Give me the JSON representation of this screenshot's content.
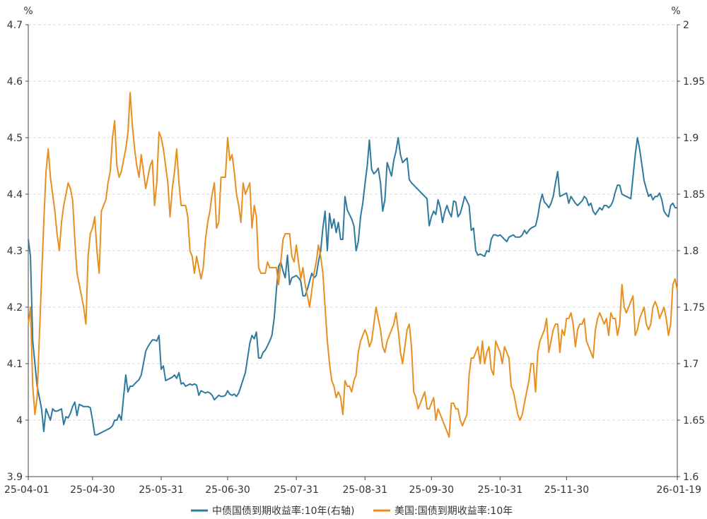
{
  "chart_data": {
    "type": "line",
    "title": "",
    "left_axis": {
      "unit": "%",
      "ticks": [
        "3.9",
        "4",
        "4.1",
        "4.2",
        "4.3",
        "4.4",
        "4.5",
        "4.6",
        "4.7"
      ],
      "ylim": [
        3.9,
        4.7
      ]
    },
    "right_axis": {
      "unit": "%",
      "ticks": [
        "1.6",
        "1.65",
        "1.7",
        "1.75",
        "1.8",
        "1.85",
        "1.9",
        "1.95",
        "2"
      ],
      "ylim": [
        1.6,
        2.0
      ]
    },
    "x_ticks": [
      "25-04-01",
      "25-04-30",
      "25-05-31",
      "25-06-30",
      "25-07-31",
      "25-08-31",
      "25-09-30",
      "25-10-31",
      "25-11-30",
      "26-01-19"
    ],
    "grid": true,
    "legend_position": "bottom",
    "series": [
      {
        "name": "中债国债到期收益率:10年(右轴)",
        "axis": "right",
        "color": "#2E7A9E",
        "x": [
          0,
          1,
          2,
          3,
          4,
          5,
          6,
          7,
          8,
          9,
          10,
          11,
          12,
          13,
          14,
          15,
          16,
          17,
          18,
          19,
          20,
          21,
          22,
          23,
          24,
          25,
          26,
          27,
          28,
          29,
          30,
          31,
          32,
          33,
          34,
          35,
          36,
          37,
          38,
          39,
          40,
          41,
          42,
          43,
          44,
          45,
          46,
          47,
          48,
          49,
          50,
          51,
          52,
          53,
          54,
          55,
          56,
          57,
          58,
          59,
          60,
          61,
          62,
          63,
          64,
          65,
          66,
          67,
          68,
          69,
          70,
          71,
          72,
          73,
          74,
          75,
          76,
          77,
          78,
          79,
          80,
          81,
          82,
          83,
          84,
          85,
          86,
          87,
          88,
          89,
          90,
          91,
          92,
          93,
          94,
          95,
          96,
          97,
          98,
          99,
          100,
          101,
          102,
          103,
          104,
          105,
          106,
          107,
          108,
          109,
          110,
          111,
          112,
          113,
          114,
          115,
          116,
          117,
          118,
          119,
          120,
          121,
          122,
          123,
          124,
          125,
          126,
          127,
          128,
          129,
          130,
          131,
          132,
          133,
          134,
          135,
          136,
          137,
          138,
          139,
          140,
          141,
          142,
          143,
          144,
          145,
          146,
          147,
          148,
          149,
          150,
          151,
          152,
          153,
          154,
          155,
          156,
          157,
          158,
          159,
          160,
          161,
          162,
          163,
          164,
          165,
          166,
          167,
          168,
          169,
          170,
          171,
          172,
          173,
          174,
          175,
          176,
          177,
          178,
          179,
          180,
          181,
          182,
          183,
          184,
          185,
          186,
          187,
          188,
          189,
          190,
          191,
          192,
          193,
          194,
          195,
          196,
          197,
          198,
          199,
          200,
          201,
          202,
          203,
          204,
          205,
          206,
          207,
          208,
          209,
          210,
          211,
          212,
          213,
          214,
          215,
          216,
          217,
          218,
          219,
          220,
          221,
          222,
          223,
          224,
          225,
          226,
          227,
          228,
          229,
          230,
          231,
          232,
          233,
          234,
          235,
          236,
          237,
          238,
          239,
          240,
          241,
          242,
          243,
          244,
          245,
          246,
          247,
          248,
          249,
          250,
          251,
          252,
          253,
          254,
          255,
          256,
          257,
          258,
          259,
          260,
          261,
          262,
          263,
          264,
          265,
          266,
          267,
          268,
          269,
          270,
          271,
          272,
          273,
          274,
          275,
          276,
          277,
          278,
          279,
          280,
          281,
          282,
          283,
          284,
          285,
          286,
          287,
          288,
          289,
          290,
          291,
          292,
          293
        ],
        "values": [
          1.81,
          1.795,
          1.72,
          1.7,
          1.68,
          1.67,
          1.66,
          1.64,
          1.66,
          1.655,
          1.65,
          1.66,
          1.658,
          1.658,
          1.659,
          1.66,
          1.646,
          1.653,
          1.652,
          1.656,
          1.662,
          1.666,
          1.654,
          1.664,
          1.663,
          1.662,
          1.662,
          1.662,
          1.661,
          1.65,
          1.637,
          1.637,
          1.638,
          1.639,
          1.64,
          1.641,
          1.642,
          1.643,
          1.645,
          1.65,
          1.65,
          1.655,
          1.65,
          1.67,
          1.69,
          1.675,
          1.68,
          1.68,
          1.682,
          1.684,
          1.686,
          1.69,
          1.7,
          1.711,
          1.715,
          1.718,
          1.721,
          1.721,
          1.72,
          1.725,
          1.695,
          1.698,
          1.685,
          1.686,
          1.687,
          1.688,
          1.69,
          1.687,
          1.692,
          1.682,
          1.683,
          1.68,
          1.681,
          1.682,
          1.681,
          1.682,
          1.681,
          1.672,
          1.676,
          1.675,
          1.674,
          1.675,
          1.674,
          1.672,
          1.668,
          1.67,
          1.672,
          1.671,
          1.671,
          1.672,
          1.676,
          1.673,
          1.672,
          1.673,
          1.671,
          1.674,
          1.68,
          1.686,
          1.692,
          1.705,
          1.718,
          1.725,
          1.722,
          1.728,
          1.705,
          1.705,
          1.71,
          1.712,
          1.716,
          1.72,
          1.725,
          1.74,
          1.765,
          1.786,
          1.79,
          1.782,
          1.776,
          1.796,
          1.77,
          1.776,
          1.777,
          1.778,
          1.776,
          1.773,
          1.76,
          1.76,
          1.766,
          1.773,
          1.78,
          1.776,
          1.778,
          1.79,
          1.8,
          1.82,
          1.835,
          1.8,
          1.833,
          1.82,
          1.828,
          1.816,
          1.825,
          1.81,
          1.81,
          1.848,
          1.836,
          1.832,
          1.828,
          1.822,
          1.8,
          1.808,
          1.83,
          1.842,
          1.859,
          1.875,
          1.898,
          1.872,
          1.868,
          1.87,
          1.873,
          1.86,
          1.835,
          1.845,
          1.878,
          1.872,
          1.866,
          1.88,
          1.888,
          1.9,
          1.885,
          1.878,
          1.88,
          1.882,
          1.863,
          1.86,
          1.858,
          1.856,
          1.854,
          1.852,
          1.85,
          1.848,
          1.846,
          1.822,
          1.83,
          1.835,
          1.832,
          1.845,
          1.838,
          1.825,
          1.834,
          1.84,
          1.834,
          1.83,
          1.844,
          1.843,
          1.83,
          1.833,
          1.84,
          1.848,
          1.844,
          1.84,
          1.818,
          1.82,
          1.8,
          1.796,
          1.797,
          1.796,
          1.795,
          1.8,
          1.799,
          1.81,
          1.814,
          1.814,
          1.813,
          1.814,
          1.812,
          1.81,
          1.808,
          1.812,
          1.813,
          1.814,
          1.812,
          1.812,
          1.812,
          1.814,
          1.818,
          1.815,
          1.818,
          1.82,
          1.821,
          1.822,
          1.83,
          1.842,
          1.85,
          1.843,
          1.841,
          1.838,
          1.842,
          1.848,
          1.86,
          1.87,
          1.848,
          1.849,
          1.85,
          1.851,
          1.842,
          1.848,
          1.845,
          1.842,
          1.84,
          1.842,
          1.844,
          1.848,
          1.846,
          1.84,
          1.842,
          1.835,
          1.832,
          1.835,
          1.838,
          1.836,
          1.84,
          1.84,
          1.838,
          1.84,
          1.844,
          1.852,
          1.858,
          1.858,
          1.85,
          1.849,
          1.848,
          1.847,
          1.846,
          1.865,
          1.885,
          1.9,
          1.89,
          1.876,
          1.862,
          1.855,
          1.848,
          1.85,
          1.845,
          1.848,
          1.848,
          1.851,
          1.845,
          1.835,
          1.832,
          1.83,
          1.84,
          1.842,
          1.838,
          1.838
        ]
      },
      {
        "name": "美国:国债到期收益率:10年",
        "axis": "left",
        "color": "#E8901F",
        "x": [
          0,
          1,
          2,
          3,
          4,
          5,
          6,
          7,
          8,
          9,
          10,
          11,
          12,
          13,
          14,
          15,
          16,
          17,
          18,
          19,
          20,
          21,
          22,
          23,
          24,
          25,
          26,
          27,
          28,
          29,
          30,
          31,
          32,
          33,
          34,
          35,
          36,
          37,
          38,
          39,
          40,
          41,
          42,
          43,
          44,
          45,
          46,
          47,
          48,
          49,
          50,
          51,
          52,
          53,
          54,
          55,
          56,
          57,
          58,
          59,
          60,
          61,
          62,
          63,
          64,
          65,
          66,
          67,
          68,
          69,
          70,
          71,
          72,
          73,
          74,
          75,
          76,
          77,
          78,
          79,
          80,
          81,
          82,
          83,
          84,
          85,
          86,
          87,
          88,
          89,
          90,
          91,
          92,
          93,
          94,
          95,
          96,
          97,
          98,
          99,
          100,
          101,
          102,
          103,
          104,
          105,
          106,
          107,
          108,
          109,
          110,
          111,
          112,
          113,
          114,
          115,
          116,
          117,
          118,
          119,
          120,
          121,
          122,
          123,
          124,
          125,
          126,
          127,
          128,
          129,
          130,
          131,
          132,
          133,
          134,
          135,
          136,
          137,
          138,
          139,
          140,
          141,
          142,
          143,
          144,
          145,
          146,
          147,
          148,
          149,
          150,
          151,
          152,
          153,
          154,
          155,
          156,
          157,
          158,
          159,
          160,
          161,
          162,
          163,
          164,
          165,
          166,
          167,
          168,
          169,
          170,
          171,
          172,
          173,
          174,
          175,
          176,
          177,
          178,
          179,
          180,
          181,
          182,
          183,
          184,
          185,
          186,
          187,
          188,
          189,
          190,
          191,
          192,
          193,
          194,
          195,
          196,
          197,
          198,
          199,
          200,
          201,
          202,
          203,
          204,
          205,
          206,
          207,
          208,
          209,
          210,
          211,
          212,
          213,
          214,
          215,
          216,
          217,
          218,
          219,
          220,
          221,
          222,
          223,
          224,
          225,
          226,
          227,
          228,
          229,
          230,
          231,
          232,
          233,
          234,
          235,
          236,
          237,
          238,
          239,
          240,
          241,
          242,
          243,
          244,
          245,
          246,
          247,
          248,
          249,
          250,
          251,
          252,
          253,
          254,
          255,
          256,
          257,
          258,
          259,
          260,
          261,
          262,
          263,
          264,
          265,
          266,
          267,
          268,
          269,
          270,
          271,
          272,
          273,
          274,
          275,
          276,
          277,
          278,
          279,
          280,
          281,
          282,
          283,
          284,
          285,
          286,
          287,
          288,
          289,
          290,
          291,
          292,
          293
        ],
        "values": [
          4.17,
          4.2,
          4.06,
          4.01,
          4.04,
          4.15,
          4.25,
          4.35,
          4.44,
          4.48,
          4.43,
          4.4,
          4.37,
          4.33,
          4.3,
          4.35,
          4.38,
          4.4,
          4.42,
          4.41,
          4.39,
          4.32,
          4.26,
          4.24,
          4.22,
          4.2,
          4.17,
          4.29,
          4.33,
          4.34,
          4.36,
          4.3,
          4.26,
          4.37,
          4.38,
          4.39,
          4.42,
          4.44,
          4.5,
          4.53,
          4.45,
          4.43,
          4.44,
          4.46,
          4.48,
          4.51,
          4.58,
          4.52,
          4.48,
          4.45,
          4.43,
          4.47,
          4.44,
          4.41,
          4.43,
          4.45,
          4.46,
          4.38,
          4.42,
          4.51,
          4.5,
          4.48,
          4.45,
          4.42,
          4.36,
          4.41,
          4.44,
          4.48,
          4.42,
          4.38,
          4.38,
          4.38,
          4.36,
          4.3,
          4.29,
          4.26,
          4.29,
          4.27,
          4.25,
          4.27,
          4.32,
          4.35,
          4.37,
          4.4,
          4.42,
          4.34,
          4.35,
          4.43,
          4.43,
          4.43,
          4.5,
          4.46,
          4.47,
          4.44,
          4.4,
          4.38,
          4.35,
          4.42,
          4.4,
          4.41,
          4.42,
          4.34,
          4.38,
          4.36,
          4.27,
          4.26,
          4.26,
          4.26,
          4.28,
          4.27,
          4.27,
          4.27,
          4.27,
          4.24,
          4.28,
          4.32,
          4.33,
          4.33,
          4.33,
          4.29,
          4.28,
          4.31,
          4.28,
          4.25,
          4.27,
          4.24,
          4.22,
          4.2,
          4.23,
          4.26,
          4.28,
          4.31,
          4.29,
          4.26,
          4.2,
          4.14,
          4.1,
          4.07,
          4.06,
          4.04,
          4.05,
          4.04,
          4.01,
          4.07,
          4.06,
          4.06,
          4.05,
          4.07,
          4.08,
          4.12,
          4.14,
          4.15,
          4.16,
          4.15,
          4.13,
          4.14,
          4.17,
          4.2,
          4.18,
          4.16,
          4.13,
          4.12,
          4.14,
          4.15,
          4.16,
          4.17,
          4.19,
          4.16,
          4.12,
          4.1,
          4.13,
          4.16,
          4.17,
          4.13,
          4.05,
          4.04,
          4.02,
          4.03,
          4.04,
          4.05,
          4.02,
          4.02,
          4.03,
          4.04,
          4.0,
          4.02,
          4.01,
          4.0,
          3.99,
          3.98,
          3.97,
          4.03,
          4.03,
          4.02,
          4.02,
          4.0,
          3.99,
          4.0,
          4.01,
          4.08,
          4.11,
          4.11,
          4.12,
          4.13,
          4.1,
          4.14,
          4.1,
          4.12,
          4.13,
          4.09,
          4.08,
          4.14,
          4.13,
          4.12,
          4.1,
          4.13,
          4.12,
          4.11,
          4.06,
          4.05,
          4.03,
          4.01,
          4.0,
          4.01,
          4.03,
          4.05,
          4.07,
          4.1,
          4.1,
          4.05,
          4.12,
          4.14,
          4.15,
          4.16,
          4.18,
          4.12,
          4.14,
          4.16,
          4.17,
          4.17,
          4.12,
          4.16,
          4.15,
          4.18,
          4.18,
          4.19,
          4.17,
          4.13,
          4.16,
          4.17,
          4.17,
          4.18,
          4.14,
          4.13,
          4.12,
          4.11,
          4.16,
          4.18,
          4.19,
          4.18,
          4.17,
          4.18,
          4.15,
          4.19,
          4.18,
          4.18,
          4.15,
          4.17,
          4.24,
          4.2,
          4.19,
          4.2,
          4.21,
          4.22,
          4.15,
          4.16,
          4.18,
          4.19,
          4.2,
          4.17,
          4.16,
          4.17,
          4.2,
          4.21,
          4.2,
          4.18,
          4.19,
          4.2,
          4.18,
          4.15,
          4.17,
          4.24,
          4.25,
          4.23
        ]
      }
    ]
  }
}
